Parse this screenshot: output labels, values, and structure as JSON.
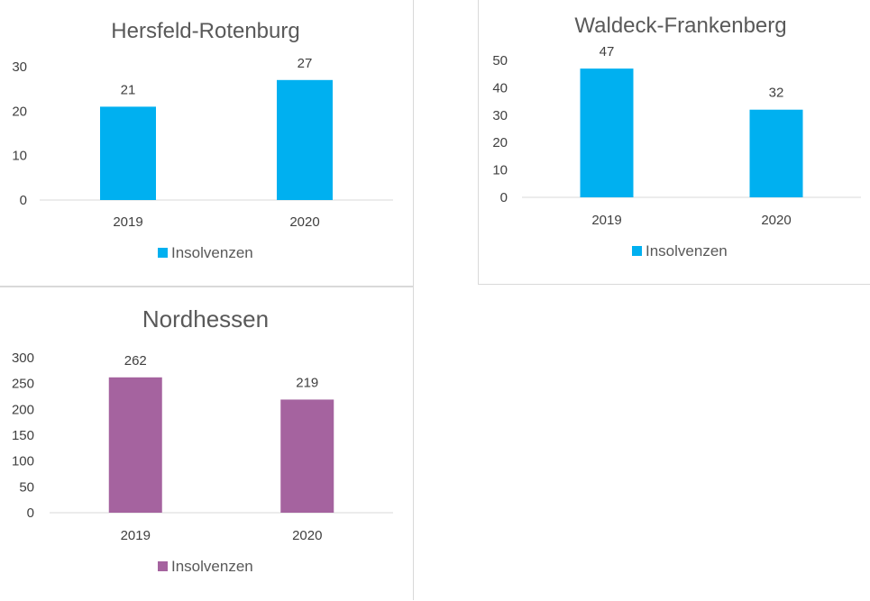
{
  "chart_data": [
    {
      "type": "bar",
      "title": "Hersfeld-Rotenburg",
      "categories": [
        "2019",
        "2020"
      ],
      "series": [
        {
          "name": "Insolvenzen",
          "values": [
            21,
            27
          ],
          "color": "#00b0f0"
        }
      ],
      "yticks": [
        0,
        10,
        20,
        30
      ],
      "ylim": [
        0,
        30
      ],
      "legend": "bottom",
      "grid": false
    },
    {
      "type": "bar",
      "title": "Waldeck-Frankenberg",
      "categories": [
        "2019",
        "2020"
      ],
      "series": [
        {
          "name": "Insolvenzen",
          "values": [
            47,
            32
          ],
          "color": "#00b0f0"
        }
      ],
      "yticks": [
        0,
        10,
        20,
        30,
        40,
        50
      ],
      "ylim": [
        0,
        50
      ],
      "legend": "bottom",
      "grid": false
    },
    {
      "type": "bar",
      "title": "Nordhessen",
      "categories": [
        "2019",
        "2020"
      ],
      "series": [
        {
          "name": "Insolvenzen",
          "values": [
            262,
            219
          ],
          "color": "#a5639f"
        }
      ],
      "yticks": [
        0,
        50,
        100,
        150,
        200,
        250,
        300
      ],
      "ylim": [
        0,
        300
      ],
      "legend": "bottom",
      "grid": false
    }
  ]
}
